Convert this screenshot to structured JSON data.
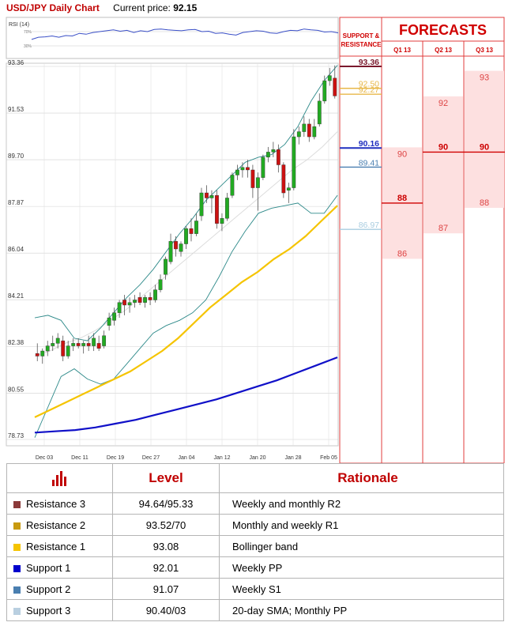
{
  "header": {
    "title": "USD/JPY Daily Chart",
    "price_label": "Current price:",
    "price": "92.15"
  },
  "rsi": {
    "label": "RSI (14)",
    "levels": [
      "70%",
      "30%"
    ],
    "values": [
      52,
      57,
      58,
      60,
      57,
      61,
      60,
      66,
      64,
      68,
      70,
      72,
      74,
      71,
      73,
      68,
      72,
      70,
      75,
      76,
      74,
      73,
      72,
      74,
      75,
      70,
      71,
      66,
      67,
      64,
      62,
      68,
      70,
      72,
      71,
      67,
      66,
      70,
      73,
      72,
      76,
      74,
      73,
      69,
      70,
      67
    ]
  },
  "chart_data": {
    "type": "candlestick",
    "title": "USD/JPY Daily Chart",
    "y_ticks": [
      "93.36",
      "91.53",
      "89.70",
      "87.87",
      "86.04",
      "84.21",
      "82.38",
      "80.55",
      "78.73"
    ],
    "ylim": [
      78.73,
      93.36
    ],
    "x_tick_labels": [
      "Dec 03",
      "Dec 11",
      "Dec 19",
      "Dec 27",
      "Jan 04",
      "Jan 12",
      "Jan 20",
      "Jan 28",
      "Feb 05"
    ],
    "grid": true,
    "candles": [
      {
        "o": 82.1,
        "h": 82.5,
        "l": 81.8,
        "c": 82.0
      },
      {
        "o": 82.0,
        "h": 82.3,
        "l": 81.7,
        "c": 82.2
      },
      {
        "o": 82.2,
        "h": 82.6,
        "l": 82.0,
        "c": 82.4
      },
      {
        "o": 82.4,
        "h": 82.8,
        "l": 82.2,
        "c": 82.5
      },
      {
        "o": 82.5,
        "h": 82.9,
        "l": 82.3,
        "c": 82.7
      },
      {
        "o": 82.6,
        "h": 82.8,
        "l": 81.8,
        "c": 82.0
      },
      {
        "o": 82.0,
        "h": 82.6,
        "l": 81.9,
        "c": 82.4
      },
      {
        "o": 82.4,
        "h": 82.7,
        "l": 82.2,
        "c": 82.5
      },
      {
        "o": 82.5,
        "h": 82.7,
        "l": 82.3,
        "c": 82.4
      },
      {
        "o": 82.4,
        "h": 82.6,
        "l": 82.1,
        "c": 82.5
      },
      {
        "o": 82.5,
        "h": 82.8,
        "l": 82.2,
        "c": 82.4
      },
      {
        "o": 82.4,
        "h": 82.9,
        "l": 82.2,
        "c": 82.7
      },
      {
        "o": 82.5,
        "h": 82.8,
        "l": 82.2,
        "c": 82.3
      },
      {
        "o": 82.4,
        "h": 83.0,
        "l": 82.3,
        "c": 82.8
      },
      {
        "o": 83.2,
        "h": 83.7,
        "l": 83.0,
        "c": 83.5
      },
      {
        "o": 83.4,
        "h": 83.9,
        "l": 83.2,
        "c": 83.7
      },
      {
        "o": 83.7,
        "h": 84.2,
        "l": 83.5,
        "c": 84.1
      },
      {
        "o": 84.2,
        "h": 84.4,
        "l": 83.6,
        "c": 84.0
      },
      {
        "o": 84.0,
        "h": 84.3,
        "l": 83.7,
        "c": 84.1
      },
      {
        "o": 84.1,
        "h": 84.4,
        "l": 83.9,
        "c": 84.2
      },
      {
        "o": 84.3,
        "h": 84.5,
        "l": 84.0,
        "c": 84.1
      },
      {
        "o": 84.1,
        "h": 84.4,
        "l": 83.9,
        "c": 84.3
      },
      {
        "o": 84.3,
        "h": 84.5,
        "l": 84.0,
        "c": 84.2
      },
      {
        "o": 84.2,
        "h": 84.8,
        "l": 84.1,
        "c": 84.6
      },
      {
        "o": 84.6,
        "h": 85.2,
        "l": 84.5,
        "c": 85.0
      },
      {
        "o": 85.2,
        "h": 85.9,
        "l": 85.0,
        "c": 85.8
      },
      {
        "o": 85.7,
        "h": 86.8,
        "l": 85.6,
        "c": 86.5
      },
      {
        "o": 86.5,
        "h": 86.7,
        "l": 85.9,
        "c": 86.2
      },
      {
        "o": 86.1,
        "h": 86.5,
        "l": 85.9,
        "c": 86.4
      },
      {
        "o": 86.4,
        "h": 87.1,
        "l": 86.2,
        "c": 87.0
      },
      {
        "o": 87.0,
        "h": 87.4,
        "l": 86.5,
        "c": 86.8
      },
      {
        "o": 86.8,
        "h": 87.6,
        "l": 86.7,
        "c": 87.3
      },
      {
        "o": 87.5,
        "h": 88.6,
        "l": 87.3,
        "c": 88.4
      },
      {
        "o": 88.4,
        "h": 88.7,
        "l": 88.0,
        "c": 88.2
      },
      {
        "o": 88.2,
        "h": 88.5,
        "l": 87.6,
        "c": 88.3
      },
      {
        "o": 88.3,
        "h": 88.5,
        "l": 87.0,
        "c": 87.2
      },
      {
        "o": 87.2,
        "h": 87.6,
        "l": 86.9,
        "c": 87.4
      },
      {
        "o": 87.4,
        "h": 88.4,
        "l": 87.3,
        "c": 88.2
      },
      {
        "o": 88.3,
        "h": 89.2,
        "l": 88.2,
        "c": 89.1
      },
      {
        "o": 89.1,
        "h": 89.5,
        "l": 88.9,
        "c": 89.3
      },
      {
        "o": 89.3,
        "h": 89.6,
        "l": 89.0,
        "c": 89.4
      },
      {
        "o": 89.4,
        "h": 89.7,
        "l": 89.0,
        "c": 89.3
      },
      {
        "o": 89.3,
        "h": 89.5,
        "l": 88.2,
        "c": 88.6
      },
      {
        "o": 88.6,
        "h": 89.2,
        "l": 87.7,
        "c": 89.0
      },
      {
        "o": 89.0,
        "h": 89.9,
        "l": 88.9,
        "c": 89.8
      },
      {
        "o": 89.8,
        "h": 90.2,
        "l": 89.6,
        "c": 90.0
      },
      {
        "o": 90.0,
        "h": 90.4,
        "l": 89.8,
        "c": 90.1
      },
      {
        "o": 90.1,
        "h": 90.3,
        "l": 89.2,
        "c": 89.5
      },
      {
        "o": 89.5,
        "h": 89.6,
        "l": 88.2,
        "c": 88.4
      },
      {
        "o": 88.5,
        "h": 88.8,
        "l": 88.0,
        "c": 88.6
      },
      {
        "o": 88.6,
        "h": 90.9,
        "l": 88.5,
        "c": 90.6
      },
      {
        "o": 90.6,
        "h": 91.0,
        "l": 90.3,
        "c": 90.8
      },
      {
        "o": 90.8,
        "h": 91.4,
        "l": 90.6,
        "c": 91.1
      },
      {
        "o": 91.1,
        "h": 91.3,
        "l": 90.4,
        "c": 90.6
      },
      {
        "o": 90.6,
        "h": 91.3,
        "l": 90.5,
        "c": 91.0
      },
      {
        "o": 91.1,
        "h": 92.3,
        "l": 91.0,
        "c": 92.0
      },
      {
        "o": 92.0,
        "h": 93.0,
        "l": 91.9,
        "c": 92.8
      },
      {
        "o": 92.8,
        "h": 93.3,
        "l": 92.6,
        "c": 93.0
      },
      {
        "o": 92.9,
        "h": 93.4,
        "l": 92.1,
        "c": 92.2
      }
    ],
    "sma_yellow": [
      79.6,
      79.9,
      80.2,
      80.5,
      80.8,
      81.1,
      81.4,
      81.8,
      82.2,
      82.7,
      83.3,
      83.9,
      84.4,
      84.9,
      85.3,
      85.8,
      86.2,
      86.7,
      87.3,
      87.9
    ],
    "sma_blue": [
      79.0,
      79.05,
      79.1,
      79.2,
      79.35,
      79.5,
      79.7,
      79.9,
      80.1,
      80.3,
      80.55,
      80.8,
      81.05,
      81.35,
      81.65,
      81.95
    ],
    "bollinger_upper": [
      83.5,
      83.6,
      83.4,
      82.7,
      82.6,
      83.1,
      83.7,
      84.3,
      84.8,
      85.4,
      86.1,
      86.8,
      87.4,
      88.1,
      88.6,
      89.1,
      89.6,
      89.8,
      89.9,
      90.3,
      91.0,
      92.0,
      92.8,
      93.4
    ],
    "bollinger_lower": [
      78.8,
      80.0,
      81.2,
      81.5,
      81.1,
      80.9,
      81.1,
      81.7,
      82.3,
      82.9,
      83.2,
      83.4,
      83.7,
      84.2,
      85.1,
      86.1,
      86.9,
      87.6,
      87.8,
      87.9,
      88.0,
      87.6,
      87.6,
      88.3
    ],
    "bollinger_mid": [
      82.0,
      82.2,
      82.5,
      82.7,
      83.0,
      83.4,
      83.8,
      84.3,
      84.8,
      85.3,
      85.8,
      86.3,
      86.8,
      87.3,
      87.8,
      88.3,
      88.8,
      89.3,
      89.7,
      90.2,
      90.8
    ]
  },
  "levels": {
    "sr_header": "SUPPORT & RESISTANCE",
    "lines": [
      {
        "value": "93.36",
        "color": "#7b1a2e",
        "bold": true
      },
      {
        "value": "92.50",
        "color": "#e8b84a",
        "bold": false
      },
      {
        "value": "92.27",
        "color": "#e8b84a",
        "bold": false
      },
      {
        "value": "90.16",
        "color": "#1f2fbf",
        "bold": true
      },
      {
        "value": "89.41",
        "color": "#4a7fb0",
        "bold": false
      },
      {
        "value": "86.97",
        "color": "#a9cde0",
        "bold": false
      }
    ]
  },
  "forecasts": {
    "title": "FORECASTS",
    "quarters": [
      {
        "label": "Q1 13",
        "high": "90",
        "low": "86",
        "mid": "88"
      },
      {
        "label": "Q2 13",
        "high": "92",
        "low": "87",
        "mid": "90"
      },
      {
        "label": "Q3 13",
        "high": "93",
        "low": "88",
        "mid": "90"
      }
    ]
  },
  "table": {
    "col_level": "Level",
    "col_rationale": "Rationale",
    "rows": [
      {
        "name": "Resistance 3",
        "level": "94.64/95.33",
        "rationale": "Weekly and monthly R2",
        "color": "#8b3a3a"
      },
      {
        "name": "Resistance 2",
        "level": "93.52/70",
        "rationale": "Monthly and weekly R1",
        "color": "#c89a10"
      },
      {
        "name": "Resistance 1",
        "level": "93.08",
        "rationale": "Bollinger band",
        "color": "#f5c400"
      },
      {
        "name": "Support 1",
        "level": "92.01",
        "rationale": "Weekly PP",
        "color": "#0000cc"
      },
      {
        "name": "Support 2",
        "level": "91.07",
        "rationale": "Weekly S1",
        "color": "#4a7fb0"
      },
      {
        "name": "Support 3",
        "level": "90.40/03",
        "rationale": "20-day SMA; Monthly PP",
        "color": "#b9cfe0"
      }
    ]
  }
}
